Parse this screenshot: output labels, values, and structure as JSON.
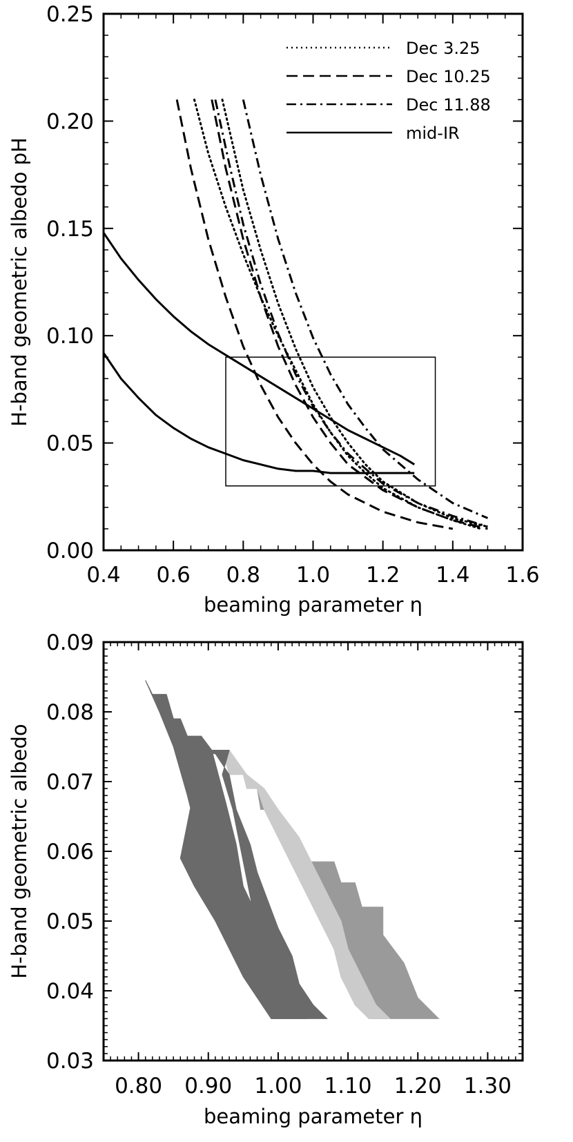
{
  "chart_data": [
    {
      "type": "line",
      "xlabel": "beaming parameter η",
      "ylabel": "H-band geometric albedo pH",
      "xlim": [
        0.4,
        1.6
      ],
      "ylim": [
        0.0,
        0.25
      ],
      "x_ticks": [
        "0.4",
        "0.6",
        "0.8",
        "1.0",
        "1.2",
        "1.4",
        "1.6"
      ],
      "y_ticks": [
        "0.00",
        "0.05",
        "0.10",
        "0.15",
        "0.20",
        "0.25"
      ],
      "x_tick_values": [
        0.4,
        0.6,
        0.8,
        1.0,
        1.2,
        1.4,
        1.6
      ],
      "y_tick_values": [
        0.0,
        0.05,
        0.1,
        0.15,
        0.2,
        0.25
      ],
      "legend_position": "top-right",
      "legend": [
        {
          "label": "Dec 3.25",
          "style": "dotted"
        },
        {
          "label": "Dec 10.25",
          "style": "dashed"
        },
        {
          "label": "Dec 11.88",
          "style": "dash-dot"
        },
        {
          "label": "mid-IR",
          "style": "solid"
        }
      ],
      "series": [
        {
          "name": "Dec 3.25",
          "style": "dotted",
          "x": [
            0.66,
            0.7,
            0.75,
            0.8,
            0.85,
            0.9,
            0.95,
            1.0,
            1.05,
            1.1,
            1.15,
            1.2,
            1.3,
            1.4,
            1.48
          ],
          "y": [
            0.21,
            0.185,
            0.16,
            0.138,
            0.118,
            0.1,
            0.084,
            0.068,
            0.055,
            0.044,
            0.036,
            0.029,
            0.02,
            0.014,
            0.01
          ]
        },
        {
          "style": "dotted",
          "x": [
            0.74,
            0.8,
            0.85,
            0.9,
            0.95,
            1.0,
            1.05,
            1.1,
            1.15,
            1.2,
            1.3,
            1.4,
            1.5
          ],
          "y": [
            0.21,
            0.168,
            0.14,
            0.115,
            0.094,
            0.076,
            0.062,
            0.05,
            0.04,
            0.032,
            0.022,
            0.015,
            0.011
          ]
        },
        {
          "name": "Dec 10.25",
          "style": "dashed",
          "x": [
            0.61,
            0.65,
            0.7,
            0.75,
            0.8,
            0.85,
            0.9,
            0.95,
            1.0,
            1.05,
            1.1,
            1.2,
            1.3,
            1.4
          ],
          "y": [
            0.21,
            0.178,
            0.145,
            0.118,
            0.095,
            0.077,
            0.062,
            0.05,
            0.04,
            0.032,
            0.026,
            0.018,
            0.013,
            0.01
          ]
        },
        {
          "style": "dashed",
          "x": [
            0.71,
            0.75,
            0.8,
            0.85,
            0.9,
            0.95,
            1.0,
            1.05,
            1.1,
            1.2,
            1.3,
            1.4,
            1.5
          ],
          "y": [
            0.21,
            0.178,
            0.145,
            0.118,
            0.095,
            0.077,
            0.062,
            0.05,
            0.04,
            0.028,
            0.02,
            0.014,
            0.01
          ]
        },
        {
          "name": "Dec 11.88",
          "style": "dash-dot",
          "x": [
            0.72,
            0.76,
            0.8,
            0.85,
            0.9,
            0.95,
            1.0,
            1.05,
            1.1,
            1.2,
            1.3,
            1.4,
            1.5
          ],
          "y": [
            0.21,
            0.18,
            0.152,
            0.124,
            0.101,
            0.082,
            0.067,
            0.055,
            0.045,
            0.031,
            0.022,
            0.016,
            0.011
          ]
        },
        {
          "style": "dash-dot",
          "x": [
            0.8,
            0.85,
            0.9,
            0.95,
            1.0,
            1.05,
            1.1,
            1.15,
            1.2,
            1.3,
            1.4,
            1.5
          ],
          "y": [
            0.21,
            0.175,
            0.145,
            0.12,
            0.099,
            0.082,
            0.068,
            0.057,
            0.047,
            0.033,
            0.022,
            0.015
          ]
        },
        {
          "name": "mid-IR",
          "style": "solid",
          "x": [
            0.4,
            0.45,
            0.5,
            0.55,
            0.6,
            0.65,
            0.7,
            0.75,
            0.8,
            0.85,
            0.9,
            0.95,
            1.0,
            1.05,
            1.1,
            1.15,
            1.2,
            1.25,
            1.29
          ],
          "y": [
            0.148,
            0.136,
            0.126,
            0.117,
            0.109,
            0.102,
            0.096,
            0.091,
            0.086,
            0.081,
            0.076,
            0.071,
            0.066,
            0.061,
            0.056,
            0.052,
            0.048,
            0.044,
            0.04
          ]
        },
        {
          "style": "solid",
          "x": [
            0.4,
            0.45,
            0.5,
            0.55,
            0.6,
            0.65,
            0.7,
            0.75,
            0.8,
            0.85,
            0.9,
            0.95,
            1.0,
            1.05,
            1.1,
            1.2,
            1.29
          ],
          "y": [
            0.092,
            0.08,
            0.071,
            0.063,
            0.057,
            0.052,
            0.048,
            0.045,
            0.042,
            0.04,
            0.038,
            0.037,
            0.037,
            0.036,
            0.036,
            0.036,
            0.036
          ]
        }
      ],
      "annotations": [
        {
          "type": "rectangle",
          "x_range": [
            0.75,
            1.35
          ],
          "y_range": [
            0.03,
            0.09
          ]
        }
      ]
    },
    {
      "type": "area",
      "xlabel": "beaming parameter η",
      "ylabel": "H-band geometric albedo",
      "xlim": [
        0.75,
        1.35
      ],
      "ylim": [
        0.03,
        0.09
      ],
      "x_ticks": [
        "0.80",
        "0.90",
        "1.00",
        "1.10",
        "1.20",
        "1.30"
      ],
      "y_ticks": [
        "0.03",
        "0.04",
        "0.05",
        "0.06",
        "0.07",
        "0.08",
        "0.09"
      ],
      "x_tick_values": [
        0.8,
        0.9,
        1.0,
        1.1,
        1.2,
        1.3
      ],
      "y_tick_values": [
        0.03,
        0.04,
        0.05,
        0.06,
        0.07,
        0.08,
        0.09
      ],
      "regions": [
        {
          "color": "#9a9a9a",
          "polygon": [
            [
              0.97,
              0.069
            ],
            [
              0.975,
              0.066
            ],
            [
              1.0,
              0.066
            ],
            [
              1.01,
              0.061
            ],
            [
              1.03,
              0.061
            ],
            [
              1.04,
              0.0585
            ],
            [
              1.08,
              0.0585
            ],
            [
              1.09,
              0.0555
            ],
            [
              1.11,
              0.0555
            ],
            [
              1.12,
              0.052
            ],
            [
              1.15,
              0.052
            ],
            [
              1.15,
              0.048
            ],
            [
              1.18,
              0.044
            ],
            [
              1.2,
              0.039
            ],
            [
              1.23,
              0.036
            ],
            [
              1.13,
              0.036
            ],
            [
              1.11,
              0.038
            ],
            [
              1.09,
              0.042
            ],
            [
              1.08,
              0.046
            ],
            [
              1.06,
              0.05
            ],
            [
              1.04,
              0.054
            ],
            [
              1.02,
              0.058
            ],
            [
              1.0,
              0.062
            ],
            [
              0.98,
              0.066
            ]
          ]
        },
        {
          "color": "#cbcbcb",
          "polygon": [
            [
              0.9,
              0.0745
            ],
            [
              0.92,
              0.0745
            ],
            [
              0.93,
              0.071
            ],
            [
              0.95,
              0.071
            ],
            [
              0.955,
              0.069
            ],
            [
              0.97,
              0.069
            ],
            [
              0.98,
              0.066
            ],
            [
              1.0,
              0.062
            ],
            [
              1.02,
              0.058
            ],
            [
              1.04,
              0.054
            ],
            [
              1.06,
              0.05
            ],
            [
              1.08,
              0.046
            ],
            [
              1.09,
              0.042
            ],
            [
              1.11,
              0.038
            ],
            [
              1.13,
              0.036
            ],
            [
              1.16,
              0.036
            ],
            [
              1.14,
              0.038
            ],
            [
              1.12,
              0.042
            ],
            [
              1.1,
              0.046
            ],
            [
              1.09,
              0.05
            ],
            [
              1.07,
              0.054
            ],
            [
              1.05,
              0.058
            ],
            [
              1.03,
              0.062
            ],
            [
              1.0,
              0.066
            ],
            [
              0.98,
              0.069
            ],
            [
              0.955,
              0.071
            ],
            [
              0.93,
              0.0745
            ]
          ]
        },
        {
          "color": "#6a6a6a",
          "polygon": [
            [
              0.81,
              0.0845
            ],
            [
              0.82,
              0.0825
            ],
            [
              0.84,
              0.0825
            ],
            [
              0.85,
              0.079
            ],
            [
              0.86,
              0.079
            ],
            [
              0.87,
              0.0765
            ],
            [
              0.89,
              0.0765
            ],
            [
              0.9,
              0.0745
            ],
            [
              0.93,
              0.0745
            ],
            [
              0.92,
              0.071
            ],
            [
              0.935,
              0.066
            ],
            [
              0.945,
              0.061
            ],
            [
              0.955,
              0.056
            ],
            [
              0.965,
              0.051
            ],
            [
              0.975,
              0.046
            ],
            [
              0.985,
              0.042
            ],
            [
              1.0,
              0.039
            ],
            [
              1.04,
              0.036
            ],
            [
              1.07,
              0.036
            ],
            [
              1.05,
              0.038
            ],
            [
              1.03,
              0.041
            ],
            [
              1.02,
              0.045
            ],
            [
              1.0,
              0.049
            ],
            [
              0.985,
              0.053
            ],
            [
              0.97,
              0.057
            ],
            [
              0.96,
              0.061
            ],
            [
              0.94,
              0.066
            ],
            [
              0.93,
              0.071
            ],
            [
              0.91,
              0.074
            ],
            [
              0.89,
              0.074
            ],
            [
              0.88,
              0.069
            ],
            [
              0.87,
              0.064
            ],
            [
              0.86,
              0.059
            ],
            [
              0.88,
              0.055
            ],
            [
              0.91,
              0.05
            ],
            [
              0.93,
              0.046
            ],
            [
              0.95,
              0.042
            ],
            [
              0.99,
              0.036
            ],
            [
              1.04,
              0.036
            ]
          ]
        },
        {
          "color": "#6a6a6a",
          "polygon": [
            [
              0.81,
              0.0845
            ],
            [
              0.83,
              0.08
            ],
            [
              0.85,
              0.075
            ],
            [
              0.87,
              0.068
            ],
            [
              0.88,
              0.064
            ],
            [
              0.88,
              0.059
            ],
            [
              0.9,
              0.055
            ],
            [
              0.92,
              0.05
            ],
            [
              0.94,
              0.046
            ],
            [
              0.96,
              0.042
            ],
            [
              0.99,
              0.036
            ],
            [
              1.04,
              0.036
            ],
            [
              1.0,
              0.04
            ],
            [
              0.98,
              0.044
            ],
            [
              0.965,
              0.049
            ],
            [
              0.95,
              0.055
            ],
            [
              0.94,
              0.061
            ],
            [
              0.925,
              0.067
            ],
            [
              0.905,
              0.0745
            ],
            [
              0.89,
              0.0765
            ],
            [
              0.87,
              0.0765
            ],
            [
              0.86,
              0.079
            ],
            [
              0.85,
              0.079
            ],
            [
              0.84,
              0.0825
            ],
            [
              0.82,
              0.0825
            ]
          ]
        }
      ]
    }
  ]
}
